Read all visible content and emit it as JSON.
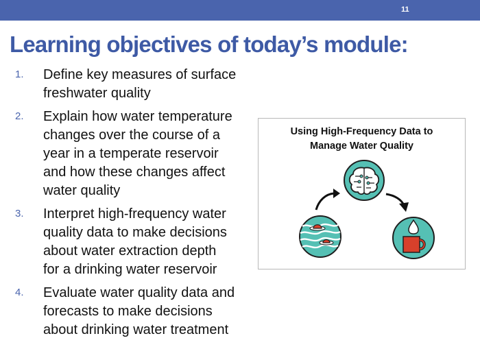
{
  "slide": {
    "number": "11"
  },
  "title": "Learning objectives of today’s module:",
  "objectives": [
    {
      "number": "1.",
      "lines": [
        "Define key measures of surface",
        "freshwater quality"
      ]
    },
    {
      "number": "2.",
      "lines": [
        "Explain how water temperature",
        "changes over the course of a",
        "year in a temperate reservoir",
        "and how these changes affect",
        "water quality"
      ]
    },
    {
      "number": "3.",
      "lines": [
        "Interpret high-frequency water",
        "quality data to make decisions",
        "about water extraction depth",
        "for a drinking water reservoir"
      ]
    },
    {
      "number": "4.",
      "lines": [
        "Evaluate water quality data and",
        "forecasts to make decisions",
        "about drinking water treatment"
      ]
    }
  ],
  "card": {
    "title_lines": [
      "Using High-Frequency Data to",
      "Manage Water Quality"
    ],
    "icons": [
      "brain-icon",
      "reservoir-water-icon",
      "drinking-water-mug-icon",
      "curved-arrow-icon"
    ]
  },
  "colors": {
    "header_bar": "#4a64ad",
    "title": "#3e5aa5",
    "icon_teal": "#55c0b4",
    "icon_outline": "#1e1e1e",
    "mug_red": "#d8402b"
  }
}
